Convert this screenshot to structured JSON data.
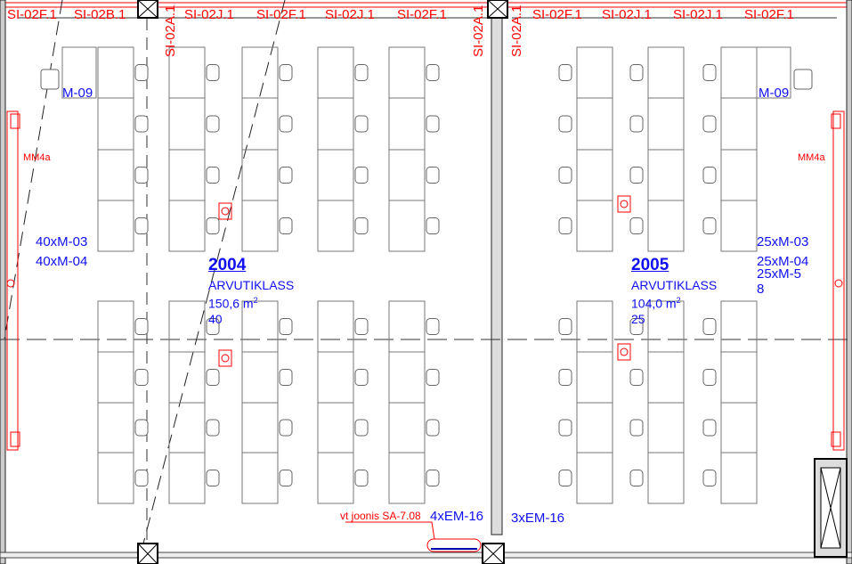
{
  "top_labels": [
    "SI-02F.1",
    "SI-02B.1",
    "SI-02J.1",
    "SI-02F.1",
    "SI-02J.1",
    "SI-02F.1",
    "SI-02F.1",
    "SI-02J.1",
    "SI-02J.1",
    "SI-02F.1"
  ],
  "vertical_labels": [
    "SI-02A.1",
    "SI-02A.1",
    "SI-02A.1"
  ],
  "rooms": [
    {
      "number": "2004",
      "name": "ARVUTIKLASS",
      "area": "150,6 m",
      "area_sup": "2",
      "seats": "40",
      "equipment": [
        "40xM-03",
        "40xM-04"
      ],
      "teacher_desk": "M-09",
      "side_label": "MM4a"
    },
    {
      "number": "2005",
      "name": "ARVUTIKLASS",
      "area": "104,0 m",
      "area_sup": "2",
      "seats": "25",
      "equipment": [
        "25xM-03",
        "25xM-04",
        "25xM-5",
        "8"
      ],
      "teacher_desk": "M-09",
      "side_label": "MM4a"
    }
  ],
  "notes": {
    "reference": "vt joonis SA-7.08",
    "em_left": "4xEM-16",
    "em_right": "3xEM-16"
  },
  "colors": {
    "annotation_red": "#ff0000",
    "room_blue": "#1010f0",
    "lines": "#555555"
  }
}
